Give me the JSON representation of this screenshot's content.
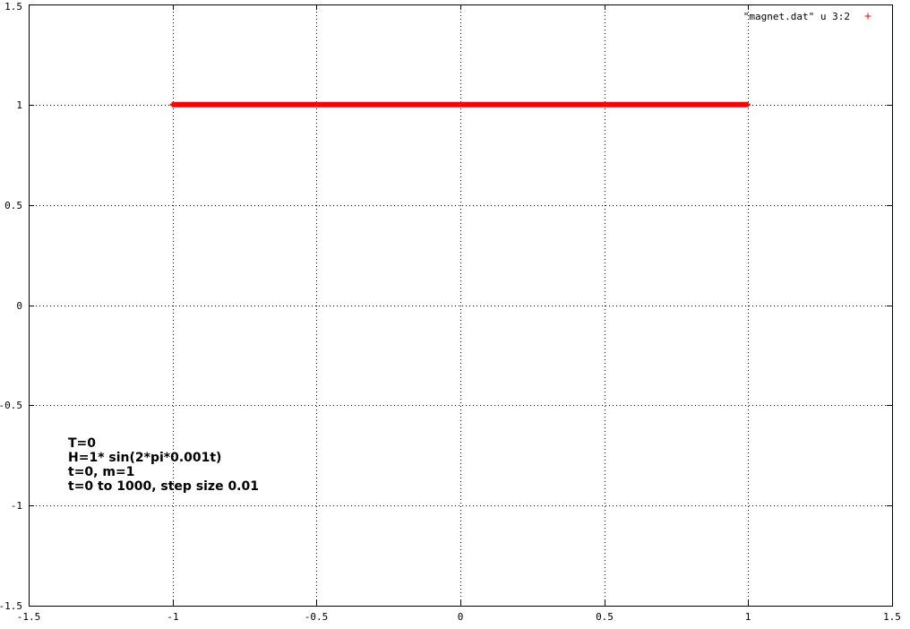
{
  "chart_data": {
    "type": "scatter",
    "title": "",
    "xlabel": "",
    "ylabel": "",
    "xlim": [
      -1.5,
      1.5
    ],
    "ylim": [
      -1.5,
      1.5
    ],
    "grid": true,
    "legend_position": "top-right",
    "x_ticks": [
      "-1.5",
      "-1",
      "-0.5",
      "0",
      "0.5",
      "1",
      "1.5"
    ],
    "y_ticks": [
      "-1.5",
      "-1",
      "-0.5",
      "0",
      "0.5",
      "1",
      "1.5"
    ],
    "series": [
      {
        "name": "\"magnet.dat\" u 3:2",
        "marker": "plus",
        "color": "#ff0000",
        "x_range": [
          -1,
          1
        ],
        "y_value": 1
      }
    ],
    "annotation": {
      "lines": [
        "T=0",
        "H=1* sin(2*pi*0.001t)",
        "t=0, m=1",
        "t=0 to 1000, step size 0.01"
      ]
    }
  }
}
